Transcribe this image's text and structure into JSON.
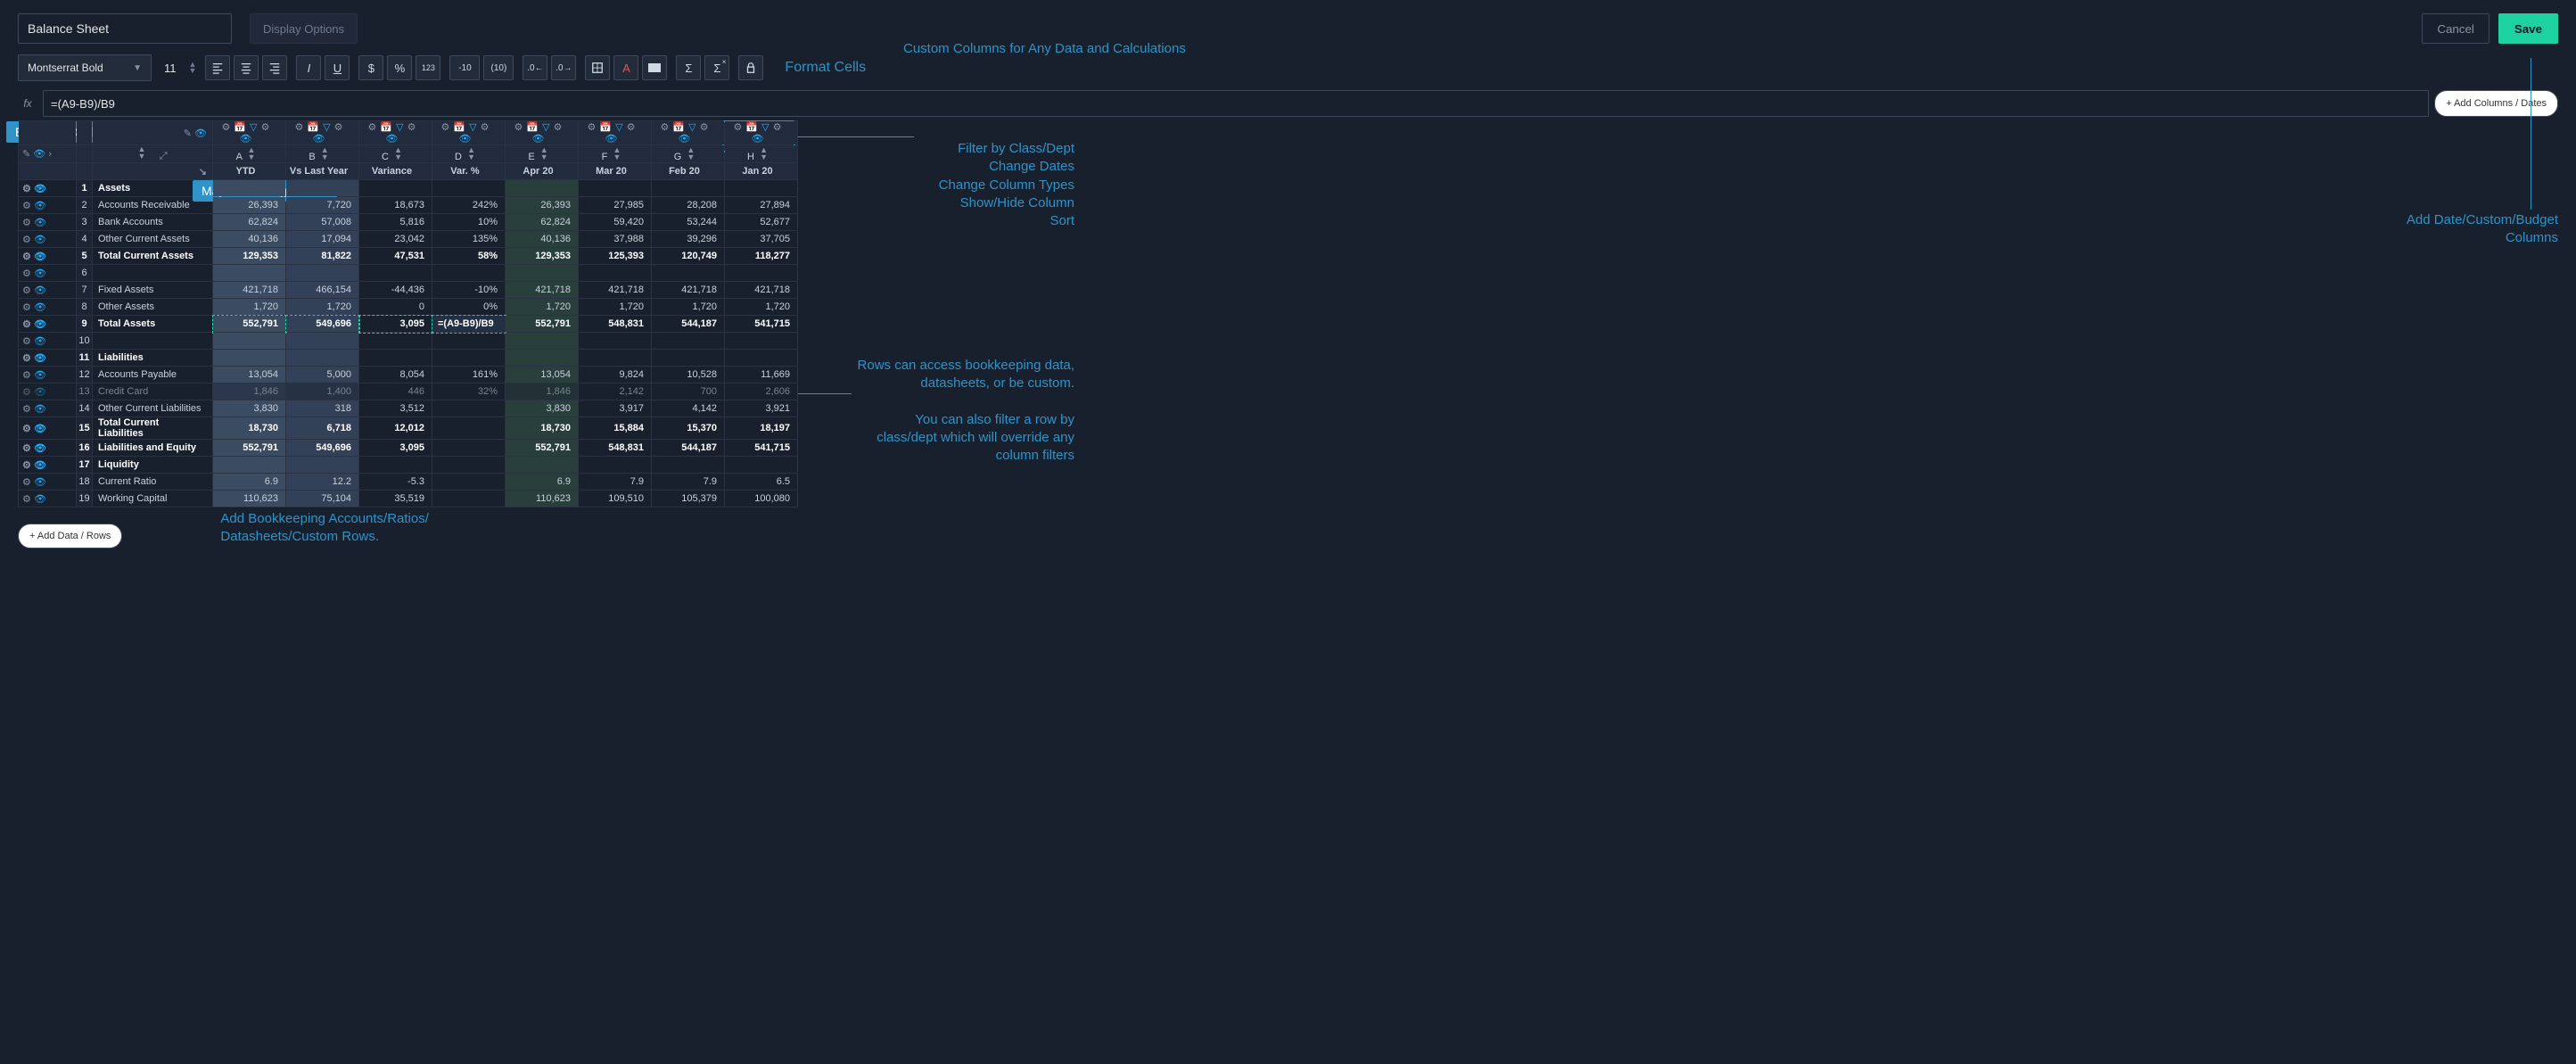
{
  "header": {
    "title": "Balance Sheet",
    "display_options": "Display Options",
    "cancel": "Cancel",
    "save": "Save"
  },
  "toolbar": {
    "font": "Montserrat Bold",
    "font_size": "11",
    "neg_paren": "-10",
    "pos_paren": "(10)",
    "format_label": "Format Cells"
  },
  "formula_bar": {
    "fx": "fx",
    "value": "=(A9-B9)/B9",
    "add_columns": "+ Add Columns / Dates"
  },
  "columns": {
    "letters": [
      "A",
      "B",
      "C",
      "D",
      "E",
      "F",
      "G",
      "H"
    ],
    "names": [
      "YTD",
      "Vs Last Year",
      "Variance",
      "Var. %",
      "Apr 20",
      "Mar 20",
      "Feb 20",
      "Jan 20"
    ]
  },
  "rows": [
    {
      "n": 1,
      "name": "Assets",
      "bold": true,
      "vals": [
        "",
        "",
        "",
        "",
        "",
        "",
        "",
        ""
      ]
    },
    {
      "n": 2,
      "name": "Accounts Receivable",
      "vals": [
        "26,393",
        "7,720",
        "18,673",
        "242%",
        "26,393",
        "27,985",
        "28,208",
        "27,894"
      ]
    },
    {
      "n": 3,
      "name": "Bank Accounts",
      "vals": [
        "62,824",
        "57,008",
        "5,816",
        "10%",
        "62,824",
        "59,420",
        "53,244",
        "52,677"
      ]
    },
    {
      "n": 4,
      "name": "Other Current Assets",
      "vals": [
        "40,136",
        "17,094",
        "23,042",
        "135%",
        "40,136",
        "37,988",
        "39,296",
        "37,705"
      ]
    },
    {
      "n": 5,
      "name": "Total Current Assets",
      "bold": true,
      "vals": [
        "129,353",
        "81,822",
        "47,531",
        "58%",
        "129,353",
        "125,393",
        "120,749",
        "118,277"
      ]
    },
    {
      "n": 6,
      "name": "",
      "vals": [
        "",
        "",
        "",
        "",
        "",
        "",
        "",
        ""
      ]
    },
    {
      "n": 7,
      "name": "Fixed Assets",
      "vals": [
        "421,718",
        "466,154",
        "-44,436",
        "-10%",
        "421,718",
        "421,718",
        "421,718",
        "421,718"
      ]
    },
    {
      "n": 8,
      "name": "Other Assets",
      "vals": [
        "1,720",
        "1,720",
        "0",
        "0%",
        "1,720",
        "1,720",
        "1,720",
        "1,720"
      ]
    },
    {
      "n": 9,
      "name": "Total Assets",
      "bold": true,
      "formula": "=(A9-B9)/B9",
      "vals": [
        "552,791",
        "549,696",
        "3,095",
        "=(A9-B9)/B9",
        "552,791",
        "548,831",
        "544,187",
        "541,715"
      ]
    },
    {
      "n": 10,
      "name": "",
      "vals": [
        "",
        "",
        "",
        "",
        "",
        "",
        "",
        ""
      ]
    },
    {
      "n": 11,
      "name": "Liabilities",
      "bold": true,
      "vals": [
        "",
        "",
        "",
        "",
        "",
        "",
        "",
        ""
      ]
    },
    {
      "n": 12,
      "name": "Accounts Payable",
      "vals": [
        "13,054",
        "5,000",
        "8,054",
        "161%",
        "13,054",
        "9,824",
        "10,528",
        "11,669"
      ]
    },
    {
      "n": 13,
      "name": "Credit Card",
      "dim": true,
      "vals": [
        "1,846",
        "1,400",
        "446",
        "32%",
        "1,846",
        "2,142",
        "700",
        "2,606"
      ]
    },
    {
      "n": 14,
      "name": "Other Current Liabilities",
      "vals": [
        "3,830",
        "318",
        "3,512",
        "",
        "3,830",
        "3,917",
        "4,142",
        "3,921"
      ]
    },
    {
      "n": 15,
      "name": "Total Current Liabilities",
      "bold": true,
      "vals": [
        "18,730",
        "6,718",
        "12,012",
        "",
        "18,730",
        "15,884",
        "15,370",
        "18,197"
      ]
    },
    {
      "n": 16,
      "name": "Liabilities and Equity",
      "bold": true,
      "vals": [
        "552,791",
        "549,696",
        "3,095",
        "",
        "552,791",
        "548,831",
        "544,187",
        "541,715"
      ]
    },
    {
      "n": 17,
      "name": "Liquidity",
      "bold": true,
      "vals": [
        "",
        "",
        "",
        "",
        "",
        "",
        "",
        ""
      ]
    },
    {
      "n": 18,
      "name": "Current Ratio",
      "vals": [
        "6.9",
        "12.2",
        "-5.3",
        "",
        "6.9",
        "7.9",
        "7.9",
        "6.5"
      ]
    },
    {
      "n": 19,
      "name": "Working Capital",
      "vals": [
        "110,623",
        "75,104",
        "35,519",
        "",
        "110,623",
        "109,510",
        "105,379",
        "100,080"
      ]
    }
  ],
  "annotations": {
    "edit_move_columns": "Edit/Move Columns",
    "map_rows": "Map/Re-Arrange Rows",
    "custom_columns": "Custom Columns for Any Data and Calculations",
    "filter_block": "Filter by Class/Dept\nChange Dates\nChange Column Types\nShow/Hide Column\nSort",
    "add_date_columns": "Add Date/Custom/Budget Columns",
    "rows_access": "Rows can access bookkeeping data, datasheets, or be custom.\n\nYou can also filter a row by class/dept which will override any column filters",
    "add_rows_label": "+ Add Data / Rows",
    "add_accounts": "Add Bookkeeping Accounts/Ratios/ Datasheets/Custom Rows."
  },
  "colors": {
    "accent_blue": "#2f93c7",
    "accent_cyan": "#1eb0ff",
    "accent_green": "#1dd1a1",
    "bg": "#19202d"
  }
}
